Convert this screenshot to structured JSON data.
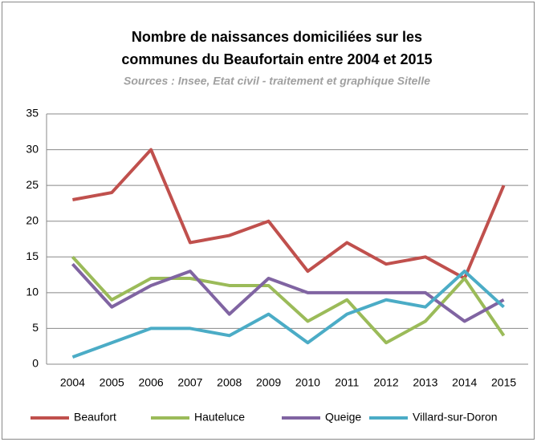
{
  "chart_data": {
    "type": "line",
    "title": [
      "Nombre de naissances domiciliées  sur les",
      "communes du Beaufortain entre 2004  et 2015"
    ],
    "subtitle": "Sources : Insee, Etat civil - traitement et graphique Sitelle",
    "categories": [
      "2004",
      "2005",
      "2006",
      "2007",
      "2008",
      "2009",
      "2010",
      "2011",
      "2012",
      "2013",
      "2014",
      "2015"
    ],
    "series": [
      {
        "name": "Beaufort",
        "color": "#c0504d",
        "values": [
          23,
          24,
          30,
          17,
          18,
          20,
          13,
          17,
          14,
          15,
          12,
          25
        ]
      },
      {
        "name": "Hauteluce",
        "color": "#9bbb59",
        "values": [
          15,
          9,
          12,
          12,
          11,
          11,
          6,
          9,
          3,
          6,
          12,
          4
        ]
      },
      {
        "name": "Queige",
        "color": "#8064a2",
        "values": [
          14,
          8,
          11,
          13,
          7,
          12,
          10,
          10,
          10,
          10,
          6,
          9
        ]
      },
      {
        "name": "Villard-sur-Doron",
        "color": "#4bacc6",
        "values": [
          1,
          3,
          5,
          5,
          4,
          7,
          3,
          7,
          9,
          8,
          13,
          8
        ]
      }
    ],
    "ylim": [
      0,
      35
    ],
    "yticks": [
      0,
      5,
      10,
      15,
      20,
      25,
      30,
      35
    ],
    "grid": true,
    "legend": "bottom"
  }
}
